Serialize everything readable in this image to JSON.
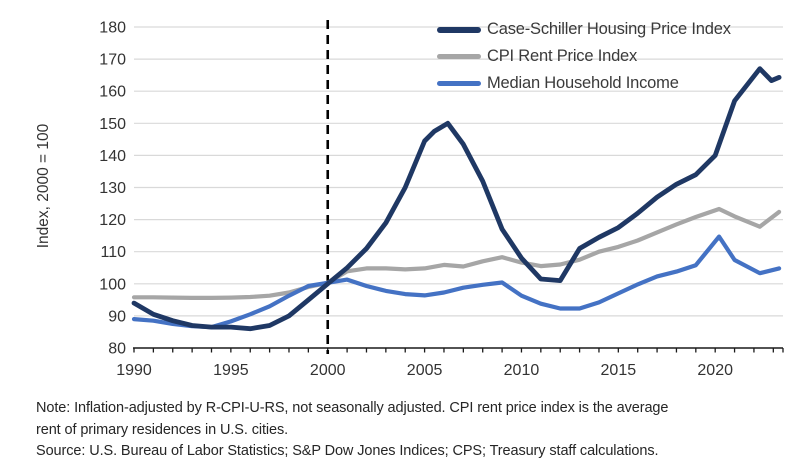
{
  "chart_data": {
    "type": "line",
    "title": "",
    "ylabel": "Index, 2000 = 100",
    "xlabel": "",
    "x_range": [
      1990,
      2023.5
    ],
    "y_range": [
      80,
      180
    ],
    "y_ticks": [
      180,
      170,
      160,
      150,
      140,
      130,
      120,
      110,
      100,
      90,
      80
    ],
    "x_ticks": [
      1990,
      1995,
      2000,
      2005,
      2010,
      2015,
      2020
    ],
    "reference_line_x": 2000,
    "grid": true,
    "grid_color": "#d9d9d9",
    "axis_color": "#1a1a1a",
    "legend_position": "top-right-inside",
    "series": [
      {
        "name": "Case-Schiller Housing Price Index",
        "color": "#1f3864",
        "x": [
          1990,
          1991,
          1992,
          1993,
          1994,
          1995,
          1996,
          1997,
          1998,
          1999,
          2000,
          2001,
          2002,
          2003,
          2004,
          2005,
          2005.5,
          2006.2,
          2007,
          2008,
          2009,
          2010,
          2011,
          2012,
          2013,
          2014,
          2015,
          2016,
          2017,
          2018,
          2019,
          2020,
          2021,
          2022.3,
          2022.9,
          2023.3
        ],
        "values": [
          94,
          90.5,
          88.5,
          87,
          86.5,
          86.5,
          86,
          87,
          90,
          95,
          100,
          105,
          111,
          119,
          130,
          144.5,
          147.5,
          150,
          143.5,
          132,
          117,
          108,
          101.5,
          101,
          111,
          114.5,
          117.5,
          122,
          127,
          131,
          134,
          140,
          157,
          167,
          163.3,
          164.3
        ]
      },
      {
        "name": "CPI Rent Price Index",
        "color": "#a6a6a6",
        "x": [
          1990,
          1991,
          1992,
          1993,
          1994,
          1995,
          1996,
          1997,
          1998,
          1999,
          2000,
          2001,
          2002,
          2003,
          2004,
          2005,
          2006,
          2007,
          2008,
          2009,
          2010,
          2011,
          2012,
          2013,
          2014,
          2015,
          2016,
          2017,
          2018,
          2019,
          2020.2,
          2021,
          2022.3,
          2023.3
        ],
        "values": [
          95.8,
          95.8,
          95.7,
          95.6,
          95.6,
          95.7,
          95.9,
          96.3,
          97.3,
          99,
          100.3,
          103.9,
          104.8,
          104.8,
          104.5,
          104.8,
          105.9,
          105.4,
          107,
          108.3,
          106.6,
          105.5,
          106,
          107.5,
          110,
          111.5,
          113.5,
          116,
          118.5,
          120.8,
          123.3,
          121,
          117.8,
          122.4
        ]
      },
      {
        "name": "Median Household Income",
        "color": "#4472c4",
        "x": [
          1990,
          1991,
          1992,
          1993,
          1994,
          1995,
          1996,
          1997,
          1998,
          1999,
          2000,
          2001,
          2002,
          2003,
          2004,
          2005,
          2006,
          2007,
          2008,
          2009,
          2010,
          2011,
          2012,
          2013,
          2014,
          2015,
          2016,
          2017,
          2018,
          2019,
          2020.2,
          2021,
          2022.3,
          2023.3
        ],
        "values": [
          89,
          88.5,
          87.5,
          86.8,
          86.5,
          88.3,
          90.5,
          93,
          96.3,
          99.3,
          100.3,
          101.3,
          99.3,
          97.8,
          96.8,
          96.4,
          97.3,
          98.8,
          99.7,
          100.4,
          96.3,
          93.8,
          92.3,
          92.3,
          94.2,
          97,
          99.8,
          102.3,
          103.8,
          105.8,
          114.7,
          107.4,
          103.3,
          104.8
        ]
      }
    ]
  },
  "notes": {
    "line1": "Note: Inflation-adjusted by R-CPI-U-RS, not seasonally adjusted. CPI rent price index is the average",
    "line2": "rent of primary residences in U.S. cities.",
    "source": "Source: U.S. Bureau of Labor Statistics; S&P Dow Jones Indices; CPS; Treasury staff calculations."
  }
}
